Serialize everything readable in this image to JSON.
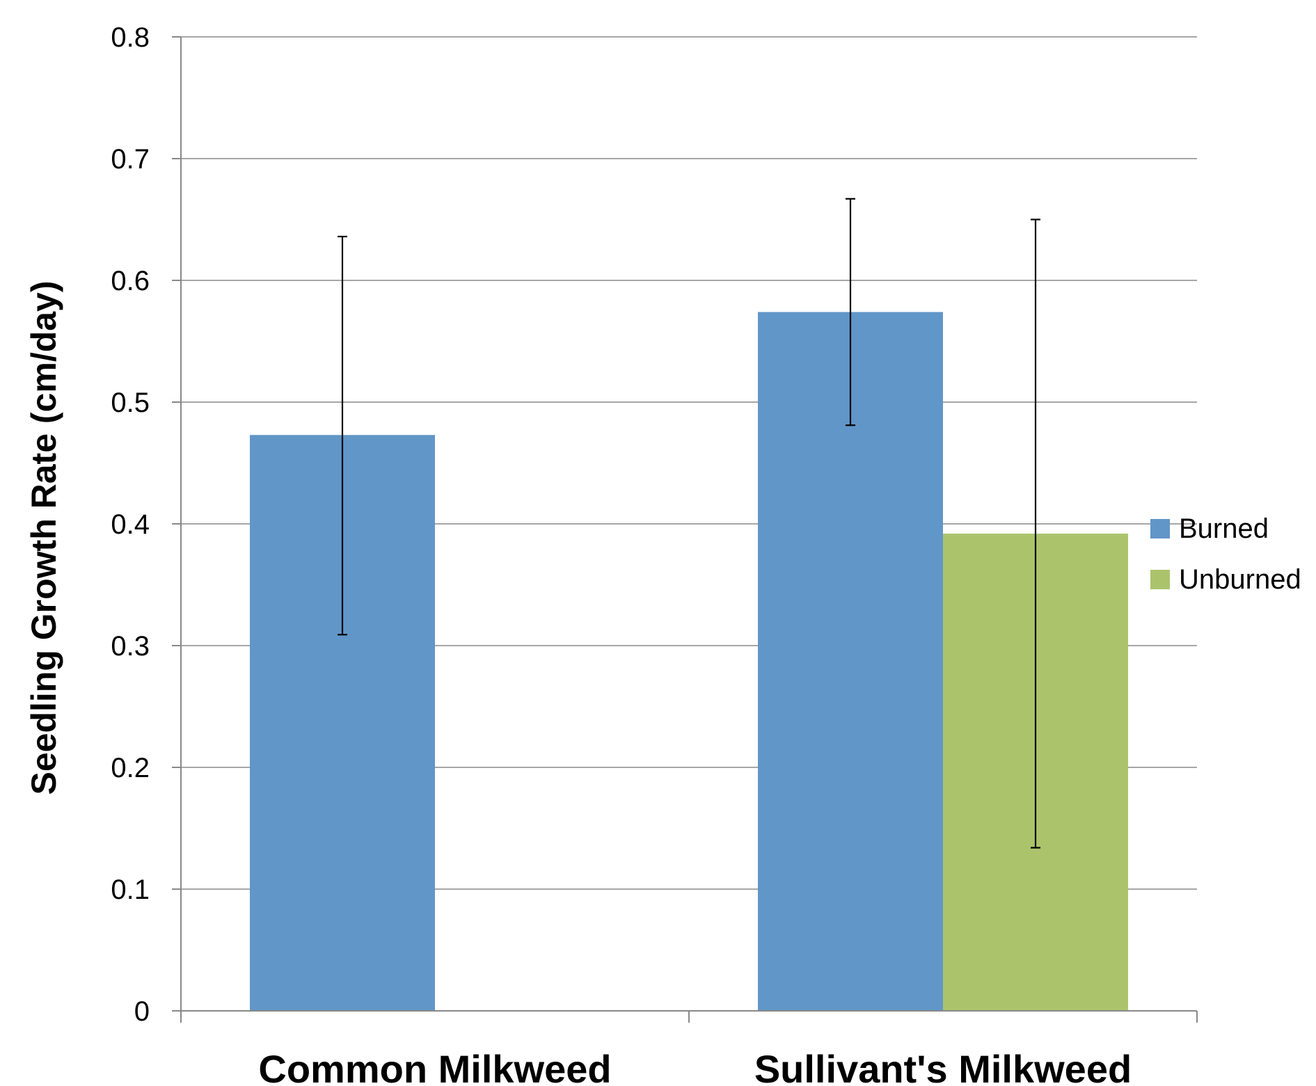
{
  "chart_data": {
    "type": "bar",
    "categories": [
      "Common Milkweed",
      "Sullivant's Milkweed"
    ],
    "series": [
      {
        "name": "Burned",
        "color": "#6196c8",
        "values": [
          0.473,
          0.574
        ],
        "error_low": [
          0.309,
          0.481
        ],
        "error_high": [
          0.636,
          0.667
        ]
      },
      {
        "name": "Unburned",
        "color": "#abc46c",
        "values": [
          null,
          0.392
        ],
        "error_low": [
          null,
          0.134
        ],
        "error_high": [
          null,
          0.65
        ]
      }
    ],
    "ylabel": "Seedling Growth Rate (cm/day)",
    "ylim": [
      0,
      0.8
    ],
    "yticks": [
      "0",
      "0.1",
      "0.2",
      "0.3",
      "0.4",
      "0.5",
      "0.6",
      "0.7",
      "0.8"
    ],
    "grid": true,
    "legend_position": "right",
    "gridline_color": "#a6a6a6",
    "axis_color": "#888888"
  }
}
